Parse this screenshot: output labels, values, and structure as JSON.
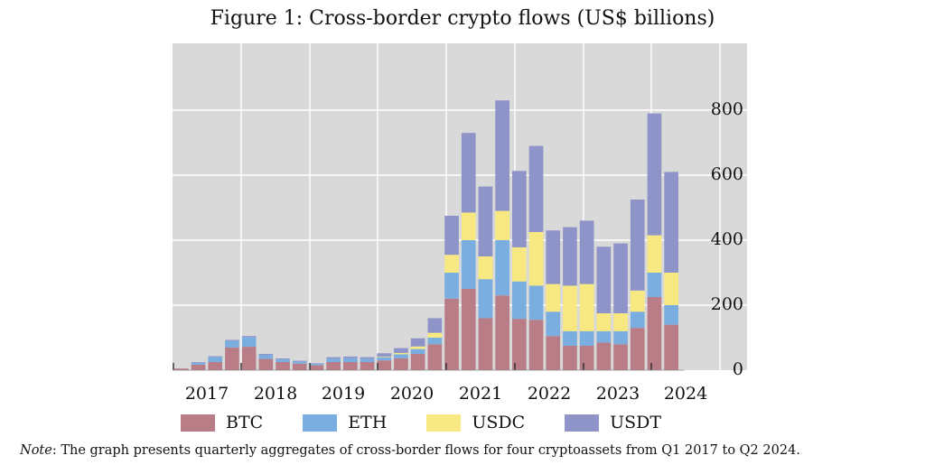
{
  "title": "Figure 1: Cross-border crypto flows (US$ billions)",
  "note": {
    "label": "Note",
    "text": ": The graph presents quarterly aggregates of cross-border flows for four cryptoassets from Q1 2017 to Q2 2024."
  },
  "colors": {
    "plot_bg": "#d9d9d9",
    "grid": "#ffffff",
    "BTC": "#b97d87",
    "ETH": "#7aaee0",
    "USDC": "#f7e882",
    "USDT": "#8e94c8"
  },
  "chart_data": {
    "type": "bar",
    "stacked": true,
    "title": "Figure 1: Cross-border crypto flows (US$ billions)",
    "xlabel": "",
    "ylabel": "",
    "ylim": [
      0,
      1000
    ],
    "yticks": [
      0,
      200,
      400,
      600,
      800
    ],
    "grid": true,
    "legend_position": "bottom",
    "x_tick_labels": [
      "2017",
      "2018",
      "2019",
      "2020",
      "2021",
      "2022",
      "2023",
      "2024"
    ],
    "categories": [
      "Q1 2017",
      "Q2 2017",
      "Q3 2017",
      "Q4 2017",
      "Q1 2018",
      "Q2 2018",
      "Q3 2018",
      "Q4 2018",
      "Q1 2019",
      "Q2 2019",
      "Q3 2019",
      "Q4 2019",
      "Q1 2020",
      "Q2 2020",
      "Q3 2020",
      "Q4 2020",
      "Q1 2021",
      "Q2 2021",
      "Q3 2021",
      "Q4 2021",
      "Q1 2022",
      "Q2 2022",
      "Q3 2022",
      "Q4 2022",
      "Q1 2023",
      "Q2 2023",
      "Q3 2023",
      "Q4 2023",
      "Q1 2024",
      "Q2 2024"
    ],
    "series": [
      {
        "name": "BTC",
        "values": [
          5,
          17,
          25,
          70,
          72,
          35,
          25,
          20,
          15,
          25,
          25,
          25,
          30,
          37,
          50,
          80,
          220,
          250,
          160,
          230,
          158,
          155,
          105,
          75,
          75,
          85,
          80,
          130,
          225,
          140
        ]
      },
      {
        "name": "ETH",
        "values": [
          0,
          6,
          15,
          20,
          30,
          12,
          8,
          6,
          4,
          10,
          12,
          10,
          10,
          12,
          15,
          20,
          80,
          150,
          120,
          170,
          115,
          105,
          75,
          45,
          45,
          35,
          40,
          50,
          75,
          60
        ]
      },
      {
        "name": "USDC",
        "values": [
          0,
          0,
          0,
          0,
          0,
          0,
          0,
          0,
          0,
          0,
          0,
          0,
          2,
          4,
          8,
          15,
          55,
          85,
          70,
          90,
          105,
          165,
          85,
          140,
          145,
          55,
          55,
          65,
          115,
          100
        ]
      },
      {
        "name": "USDT",
        "values": [
          0,
          2,
          3,
          3,
          3,
          3,
          3,
          3,
          2,
          5,
          5,
          5,
          10,
          15,
          25,
          45,
          120,
          245,
          215,
          340,
          235,
          265,
          165,
          180,
          195,
          205,
          215,
          280,
          375,
          310
        ]
      }
    ]
  }
}
